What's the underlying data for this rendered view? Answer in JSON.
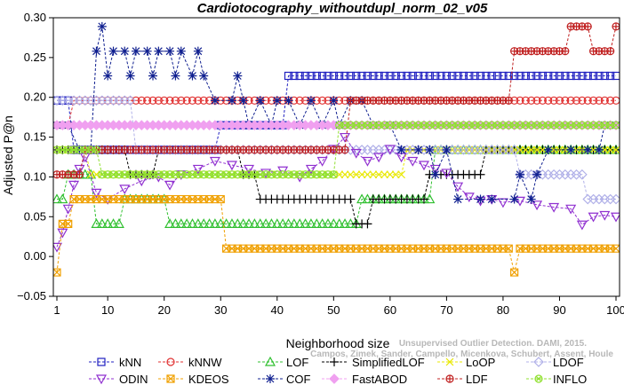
{
  "chart_data": {
    "type": "line",
    "title": "Cardiotocography_withoutdupl_norm_02_v05",
    "xlabel": "Neighborhood size",
    "ylabel": "Adjusted P@n",
    "xlim": [
      1,
      100
    ],
    "ylim": [
      -0.05,
      0.3
    ],
    "xticks": [
      1,
      10,
      20,
      30,
      40,
      50,
      60,
      70,
      80,
      90,
      100
    ],
    "yticks": [
      -0.05,
      0.0,
      0.05,
      0.1,
      0.15,
      0.2,
      0.25,
      0.3
    ],
    "ytick_labels": [
      "−0.05",
      "0.00",
      "0.05",
      "0.10",
      "0.15",
      "0.20",
      "0.25",
      "0.30"
    ],
    "grid": false,
    "legend_position": "bottom",
    "watermark": {
      "line1": "Unsupervised Outlier Detection. DAMI, 2015.",
      "line2": "Campos, Zimek, Sander, Campello, Micenkova, Schubert, Assent, Houle"
    },
    "series": [
      {
        "name": "kNN",
        "color": "#2020c0",
        "marker": "square",
        "segments": [
          [
            1,
            3,
            0.196
          ],
          [
            4,
            9,
            0.134
          ],
          [
            10,
            29,
            0.134
          ],
          [
            30,
            32,
            0.165
          ],
          [
            33,
            41,
            0.165
          ],
          [
            42,
            100,
            0.227
          ]
        ]
      },
      {
        "name": "kNNW",
        "color": "#e03030",
        "marker": "circle",
        "segments": [
          [
            1,
            3,
            0.165
          ],
          [
            4,
            17,
            0.196
          ],
          [
            18,
            100,
            0.196
          ]
        ]
      },
      {
        "name": "LOF",
        "color": "#30c030",
        "marker": "triangle-up",
        "segments": [
          [
            1,
            2,
            0.072
          ],
          [
            3,
            7,
            0.103
          ],
          [
            8,
            12,
            0.041
          ],
          [
            13,
            20,
            0.072
          ],
          [
            21,
            54,
            0.041
          ],
          [
            55,
            67,
            0.072
          ],
          [
            68,
            100,
            0.134
          ]
        ]
      },
      {
        "name": "SimplifiedLOF",
        "color": "#000000",
        "marker": "plus",
        "segments": [
          [
            1,
            13,
            0.134
          ],
          [
            14,
            18,
            0.103
          ],
          [
            19,
            33,
            0.134
          ],
          [
            34,
            36,
            0.103
          ],
          [
            37,
            53,
            0.072
          ],
          [
            54,
            56,
            0.041
          ],
          [
            57,
            66,
            0.072
          ],
          [
            67,
            76,
            0.103
          ],
          [
            77,
            100,
            0.134
          ]
        ]
      },
      {
        "name": "LoOP",
        "color": "#e8e800",
        "marker": "x",
        "segments": [
          [
            1,
            6,
            0.134
          ],
          [
            7,
            30,
            0.103
          ],
          [
            31,
            62,
            0.103
          ],
          [
            63,
            68,
            0.134
          ],
          [
            69,
            100,
            0.134
          ]
        ]
      },
      {
        "name": "LDOF",
        "color": "#b0b0e8",
        "marker": "diamond",
        "segments": [
          [
            1,
            14,
            0.196
          ],
          [
            15,
            30,
            0.134
          ],
          [
            31,
            82,
            0.134
          ],
          [
            83,
            94,
            0.103
          ],
          [
            95,
            100,
            0.072
          ]
        ]
      },
      {
        "name": "ODIN",
        "color": "#9030d0",
        "marker": "triangle-down",
        "points": [
          [
            1,
            0.012
          ],
          [
            2,
            0.03
          ],
          [
            3,
            0.06
          ],
          [
            4,
            0.09
          ],
          [
            5,
            0.11
          ],
          [
            6,
            0.125
          ],
          [
            8,
            0.08
          ],
          [
            10,
            0.072
          ],
          [
            13,
            0.085
          ],
          [
            16,
            0.095
          ],
          [
            19,
            0.1
          ],
          [
            21,
            0.09
          ],
          [
            23,
            0.103
          ],
          [
            26,
            0.11
          ],
          [
            29,
            0.12
          ],
          [
            32,
            0.115
          ],
          [
            35,
            0.11
          ],
          [
            38,
            0.105
          ],
          [
            41,
            0.108
          ],
          [
            44,
            0.1
          ],
          [
            46,
            0.11
          ],
          [
            48,
            0.12
          ],
          [
            50,
            0.135
          ],
          [
            52,
            0.15
          ],
          [
            54,
            0.13
          ],
          [
            56,
            0.12
          ],
          [
            58,
            0.125
          ],
          [
            60,
            0.135
          ],
          [
            62,
            0.125
          ],
          [
            64,
            0.12
          ],
          [
            66,
            0.115
          ],
          [
            68,
            0.11
          ],
          [
            70,
            0.105
          ],
          [
            72,
            0.088
          ],
          [
            74,
            0.075
          ],
          [
            76,
            0.07
          ],
          [
            78,
            0.072
          ],
          [
            80,
            0.068
          ],
          [
            83,
            0.07
          ],
          [
            86,
            0.065
          ],
          [
            89,
            0.062
          ],
          [
            92,
            0.06
          ],
          [
            94,
            0.04
          ],
          [
            96,
            0.05
          ],
          [
            98,
            0.052
          ],
          [
            100,
            0.05
          ]
        ]
      },
      {
        "name": "KDEOS",
        "color": "#f0a000",
        "marker": "square-x",
        "segments": [
          [
            1,
            1,
            -0.02
          ],
          [
            2,
            3,
            0.041
          ],
          [
            4,
            10,
            0.072
          ],
          [
            11,
            22,
            0.072
          ],
          [
            23,
            30,
            0.072
          ],
          [
            31,
            45,
            0.01
          ],
          [
            46,
            56,
            0.01
          ],
          [
            57,
            81,
            0.01
          ],
          [
            82,
            82,
            -0.02
          ],
          [
            83,
            100,
            0.01
          ]
        ]
      },
      {
        "name": "COF",
        "color": "#102090",
        "marker": "asterisk",
        "points": [
          [
            1,
            0.165
          ],
          [
            3,
            0.165
          ],
          [
            5,
            0.134
          ],
          [
            7,
            0.134
          ],
          [
            8,
            0.258
          ],
          [
            9,
            0.289
          ],
          [
            10,
            0.227
          ],
          [
            11,
            0.258
          ],
          [
            13,
            0.258
          ],
          [
            14,
            0.227
          ],
          [
            15,
            0.258
          ],
          [
            17,
            0.258
          ],
          [
            18,
            0.227
          ],
          [
            19,
            0.258
          ],
          [
            21,
            0.258
          ],
          [
            22,
            0.227
          ],
          [
            23,
            0.258
          ],
          [
            25,
            0.227
          ],
          [
            26,
            0.258
          ],
          [
            27,
            0.227
          ],
          [
            29,
            0.196
          ],
          [
            32,
            0.196
          ],
          [
            33,
            0.227
          ],
          [
            34,
            0.196
          ],
          [
            35,
            0.165
          ],
          [
            37,
            0.196
          ],
          [
            39,
            0.165
          ],
          [
            40,
            0.196
          ],
          [
            42,
            0.196
          ],
          [
            44,
            0.165
          ],
          [
            46,
            0.196
          ],
          [
            48,
            0.165
          ],
          [
            50,
            0.196
          ],
          [
            51,
            0.165
          ],
          [
            53,
            0.196
          ],
          [
            55,
            0.196
          ],
          [
            57,
            0.165
          ],
          [
            60,
            0.165
          ],
          [
            62,
            0.134
          ],
          [
            65,
            0.134
          ],
          [
            67,
            0.134
          ],
          [
            68,
            0.103
          ],
          [
            70,
            0.134
          ],
          [
            72,
            0.072
          ],
          [
            76,
            0.072
          ],
          [
            78,
            0.072
          ],
          [
            82,
            0.072
          ],
          [
            83,
            0.103
          ],
          [
            85,
            0.072
          ],
          [
            86,
            0.103
          ],
          [
            88,
            0.134
          ],
          [
            92,
            0.134
          ],
          [
            95,
            0.134
          ],
          [
            97,
            0.134
          ],
          [
            98,
            0.165
          ],
          [
            100,
            0.165
          ]
        ]
      },
      {
        "name": "FastABOD",
        "color": "#f0a0f0",
        "marker": "diamond-filled",
        "segments": [
          [
            1,
            10,
            0.165
          ],
          [
            11,
            20,
            0.165
          ],
          [
            21,
            35,
            0.165
          ],
          [
            36,
            62,
            0.165
          ],
          [
            63,
            100,
            0.165
          ]
        ]
      },
      {
        "name": "LDF",
        "color": "#c02020",
        "marker": "circle-plus",
        "segments": [
          [
            1,
            5,
            0.103
          ],
          [
            6,
            30,
            0.134
          ],
          [
            31,
            52,
            0.134
          ],
          [
            53,
            81,
            0.196
          ],
          [
            82,
            91,
            0.258
          ],
          [
            92,
            95,
            0.289
          ],
          [
            96,
            99,
            0.258
          ],
          [
            100,
            100,
            0.289
          ]
        ]
      },
      {
        "name": "INFLO",
        "color": "#90e030",
        "marker": "circle-x",
        "segments": [
          [
            1,
            8,
            0.134
          ],
          [
            9,
            30,
            0.103
          ],
          [
            31,
            50,
            0.103
          ],
          [
            51,
            55,
            0.165
          ],
          [
            56,
            100,
            0.165
          ]
        ]
      }
    ]
  }
}
